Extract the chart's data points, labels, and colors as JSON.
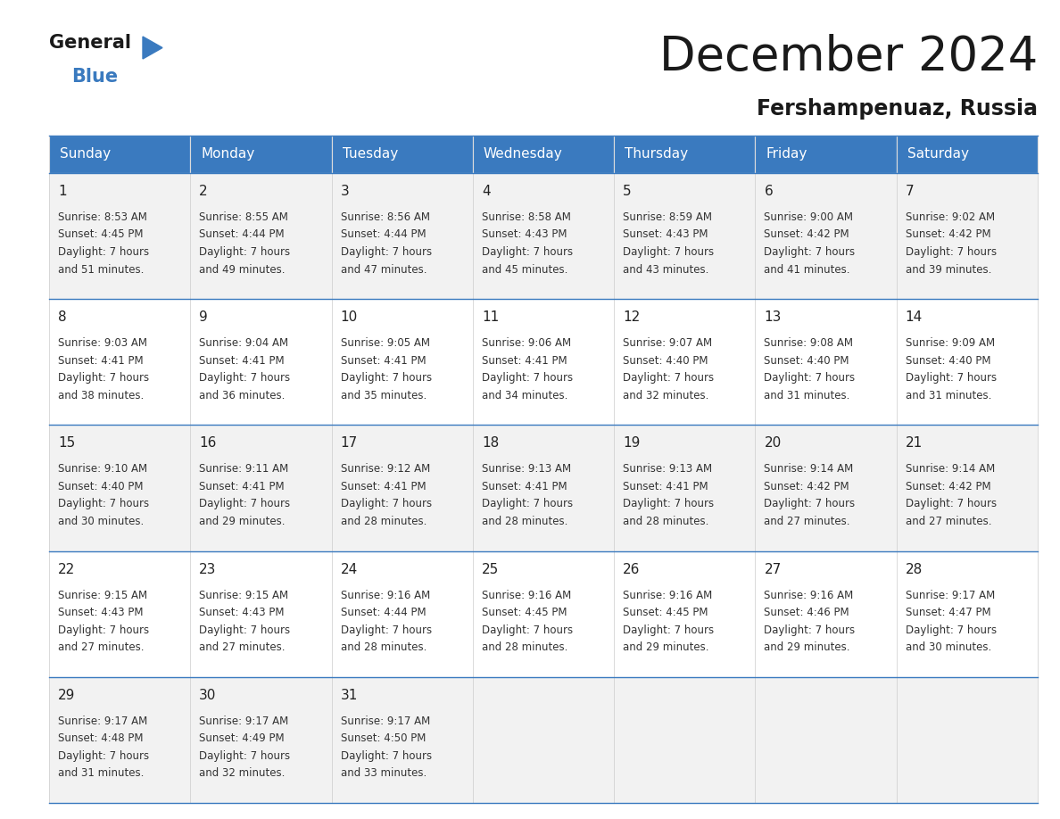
{
  "title": "December 2024",
  "subtitle": "Fershampenuaz, Russia",
  "header_color": "#3a7abf",
  "header_text_color": "#ffffff",
  "days_of_week": [
    "Sunday",
    "Monday",
    "Tuesday",
    "Wednesday",
    "Thursday",
    "Friday",
    "Saturday"
  ],
  "bg_colors": [
    "#f2f2f2",
    "#ffffff",
    "#f2f2f2",
    "#ffffff",
    "#f2f2f2"
  ],
  "calendar": [
    [
      {
        "day": 1,
        "sunrise": "8:53 AM",
        "sunset": "4:45 PM",
        "daylight": "7 hours and 51 minutes."
      },
      {
        "day": 2,
        "sunrise": "8:55 AM",
        "sunset": "4:44 PM",
        "daylight": "7 hours and 49 minutes."
      },
      {
        "day": 3,
        "sunrise": "8:56 AM",
        "sunset": "4:44 PM",
        "daylight": "7 hours and 47 minutes."
      },
      {
        "day": 4,
        "sunrise": "8:58 AM",
        "sunset": "4:43 PM",
        "daylight": "7 hours and 45 minutes."
      },
      {
        "day": 5,
        "sunrise": "8:59 AM",
        "sunset": "4:43 PM",
        "daylight": "7 hours and 43 minutes."
      },
      {
        "day": 6,
        "sunrise": "9:00 AM",
        "sunset": "4:42 PM",
        "daylight": "7 hours and 41 minutes."
      },
      {
        "day": 7,
        "sunrise": "9:02 AM",
        "sunset": "4:42 PM",
        "daylight": "7 hours and 39 minutes."
      }
    ],
    [
      {
        "day": 8,
        "sunrise": "9:03 AM",
        "sunset": "4:41 PM",
        "daylight": "7 hours and 38 minutes."
      },
      {
        "day": 9,
        "sunrise": "9:04 AM",
        "sunset": "4:41 PM",
        "daylight": "7 hours and 36 minutes."
      },
      {
        "day": 10,
        "sunrise": "9:05 AM",
        "sunset": "4:41 PM",
        "daylight": "7 hours and 35 minutes."
      },
      {
        "day": 11,
        "sunrise": "9:06 AM",
        "sunset": "4:41 PM",
        "daylight": "7 hours and 34 minutes."
      },
      {
        "day": 12,
        "sunrise": "9:07 AM",
        "sunset": "4:40 PM",
        "daylight": "7 hours and 32 minutes."
      },
      {
        "day": 13,
        "sunrise": "9:08 AM",
        "sunset": "4:40 PM",
        "daylight": "7 hours and 31 minutes."
      },
      {
        "day": 14,
        "sunrise": "9:09 AM",
        "sunset": "4:40 PM",
        "daylight": "7 hours and 31 minutes."
      }
    ],
    [
      {
        "day": 15,
        "sunrise": "9:10 AM",
        "sunset": "4:40 PM",
        "daylight": "7 hours and 30 minutes."
      },
      {
        "day": 16,
        "sunrise": "9:11 AM",
        "sunset": "4:41 PM",
        "daylight": "7 hours and 29 minutes."
      },
      {
        "day": 17,
        "sunrise": "9:12 AM",
        "sunset": "4:41 PM",
        "daylight": "7 hours and 28 minutes."
      },
      {
        "day": 18,
        "sunrise": "9:13 AM",
        "sunset": "4:41 PM",
        "daylight": "7 hours and 28 minutes."
      },
      {
        "day": 19,
        "sunrise": "9:13 AM",
        "sunset": "4:41 PM",
        "daylight": "7 hours and 28 minutes."
      },
      {
        "day": 20,
        "sunrise": "9:14 AM",
        "sunset": "4:42 PM",
        "daylight": "7 hours and 27 minutes."
      },
      {
        "day": 21,
        "sunrise": "9:14 AM",
        "sunset": "4:42 PM",
        "daylight": "7 hours and 27 minutes."
      }
    ],
    [
      {
        "day": 22,
        "sunrise": "9:15 AM",
        "sunset": "4:43 PM",
        "daylight": "7 hours and 27 minutes."
      },
      {
        "day": 23,
        "sunrise": "9:15 AM",
        "sunset": "4:43 PM",
        "daylight": "7 hours and 27 minutes."
      },
      {
        "day": 24,
        "sunrise": "9:16 AM",
        "sunset": "4:44 PM",
        "daylight": "7 hours and 28 minutes."
      },
      {
        "day": 25,
        "sunrise": "9:16 AM",
        "sunset": "4:45 PM",
        "daylight": "7 hours and 28 minutes."
      },
      {
        "day": 26,
        "sunrise": "9:16 AM",
        "sunset": "4:45 PM",
        "daylight": "7 hours and 29 minutes."
      },
      {
        "day": 27,
        "sunrise": "9:16 AM",
        "sunset": "4:46 PM",
        "daylight": "7 hours and 29 minutes."
      },
      {
        "day": 28,
        "sunrise": "9:17 AM",
        "sunset": "4:47 PM",
        "daylight": "7 hours and 30 minutes."
      }
    ],
    [
      {
        "day": 29,
        "sunrise": "9:17 AM",
        "sunset": "4:48 PM",
        "daylight": "7 hours and 31 minutes."
      },
      {
        "day": 30,
        "sunrise": "9:17 AM",
        "sunset": "4:49 PM",
        "daylight": "7 hours and 32 minutes."
      },
      {
        "day": 31,
        "sunrise": "9:17 AM",
        "sunset": "4:50 PM",
        "daylight": "7 hours and 33 minutes."
      },
      null,
      null,
      null,
      null
    ]
  ],
  "logo_general_color": "#1a1a1a",
  "logo_blue_color": "#3a7abf",
  "logo_triangle_color": "#3a7abf",
  "title_fontsize": 38,
  "subtitle_fontsize": 17,
  "header_fontsize": 11,
  "day_num_fontsize": 11,
  "cell_text_fontsize": 8.5
}
